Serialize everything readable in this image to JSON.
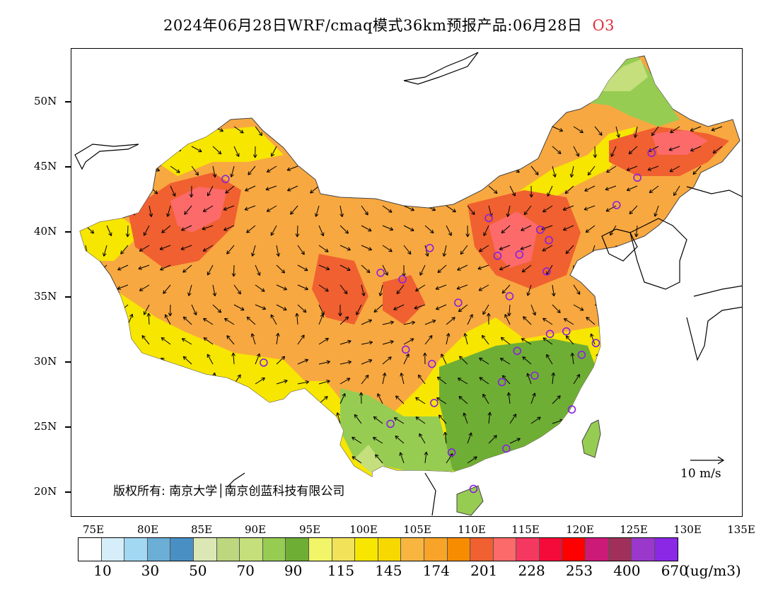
{
  "title": {
    "main": "2024年06月28日WRF/cmaq模式36km预报产品:06月28日",
    "species": "O3"
  },
  "lat_labels": [
    "50N",
    "45N",
    "40N",
    "35N",
    "30N",
    "25N",
    "20N"
  ],
  "lon_labels": [
    "75E",
    "80E",
    "85E",
    "90E",
    "95E",
    "100E",
    "105E",
    "110E",
    "115E",
    "120E",
    "125E",
    "130E",
    "135E"
  ],
  "copyright": "版权所有: 南京大学│南京创蓝科技有限公司",
  "wind_reference": "10 m/s",
  "colorbar": {
    "colors": [
      "#ffffff",
      "#d6eefa",
      "#a2d8f2",
      "#6baed6",
      "#4a8fc4",
      "#dbe8b6",
      "#bcd77e",
      "#c4df7c",
      "#97cc52",
      "#6fae35",
      "#f1f567",
      "#f2e25a",
      "#f7e600",
      "#f7d800",
      "#f8b640",
      "#f8a428",
      "#f88c00",
      "#f06030",
      "#fc6a6a",
      "#f43860",
      "#f40b3a",
      "#ff0000",
      "#cc1a78",
      "#a0305a",
      "#9a38cc",
      "#8a28e6"
    ],
    "labels": [
      "10",
      "30",
      "50",
      "70",
      "90",
      "115",
      "145",
      "174",
      "201",
      "228",
      "253",
      "400",
      "670"
    ],
    "unit": "(ug/m3)"
  },
  "stations": [
    {
      "lon": 87.6,
      "lat": 43.8
    },
    {
      "lon": 91.1,
      "lat": 29.7
    },
    {
      "lon": 101.8,
      "lat": 36.6
    },
    {
      "lon": 103.8,
      "lat": 36.1
    },
    {
      "lon": 106.3,
      "lat": 38.5
    },
    {
      "lon": 111.7,
      "lat": 40.8
    },
    {
      "lon": 112.5,
      "lat": 37.9
    },
    {
      "lon": 114.5,
      "lat": 38.0
    },
    {
      "lon": 116.4,
      "lat": 39.9
    },
    {
      "lon": 117.2,
      "lat": 39.1
    },
    {
      "lon": 117.0,
      "lat": 36.7
    },
    {
      "lon": 113.6,
      "lat": 34.8
    },
    {
      "lon": 108.9,
      "lat": 34.3
    },
    {
      "lon": 104.1,
      "lat": 30.7
    },
    {
      "lon": 106.5,
      "lat": 29.6
    },
    {
      "lon": 106.7,
      "lat": 26.6
    },
    {
      "lon": 102.7,
      "lat": 25.0
    },
    {
      "lon": 108.3,
      "lat": 22.8
    },
    {
      "lon": 113.3,
      "lat": 23.1
    },
    {
      "lon": 110.3,
      "lat": 20.0
    },
    {
      "lon": 112.9,
      "lat": 28.2
    },
    {
      "lon": 114.3,
      "lat": 30.6
    },
    {
      "lon": 115.9,
      "lat": 28.7
    },
    {
      "lon": 117.3,
      "lat": 31.9
    },
    {
      "lon": 118.8,
      "lat": 32.1
    },
    {
      "lon": 121.5,
      "lat": 31.2
    },
    {
      "lon": 120.2,
      "lat": 30.3
    },
    {
      "lon": 119.3,
      "lat": 26.1
    },
    {
      "lon": 123.4,
      "lat": 41.8
    },
    {
      "lon": 125.3,
      "lat": 43.9
    },
    {
      "lon": 126.6,
      "lat": 45.8
    }
  ]
}
